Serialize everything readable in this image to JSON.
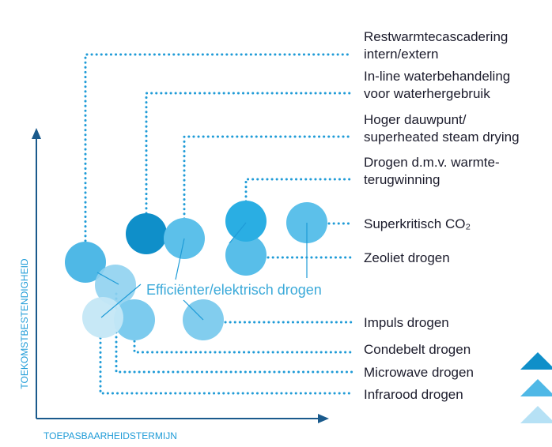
{
  "labels": [
    [
      "Restwarmtecascadering",
      "intern/extern"
    ],
    [
      "In-line waterbehandeling",
      "voor waterhergebruik"
    ],
    [
      "Hoger dauwpunt/",
      "superheated steam drying"
    ],
    [
      "Drogen d.m.v. warmte-",
      "terugwinning"
    ],
    [
      "Superkritisch CO₂"
    ],
    [
      "Zeoliet drogen"
    ],
    [
      "Impuls drogen"
    ],
    [
      "Condebelt drogen"
    ],
    [
      "Microwave drogen"
    ],
    [
      "Infrarood drogen"
    ]
  ],
  "center_label": "Efficiënter/elektrisch drogen",
  "y_axis_label": "TOEKOMSTBESTENDIGHEID",
  "x_axis_label": "TOEPASBAARHEIDSTERMIJN"
}
